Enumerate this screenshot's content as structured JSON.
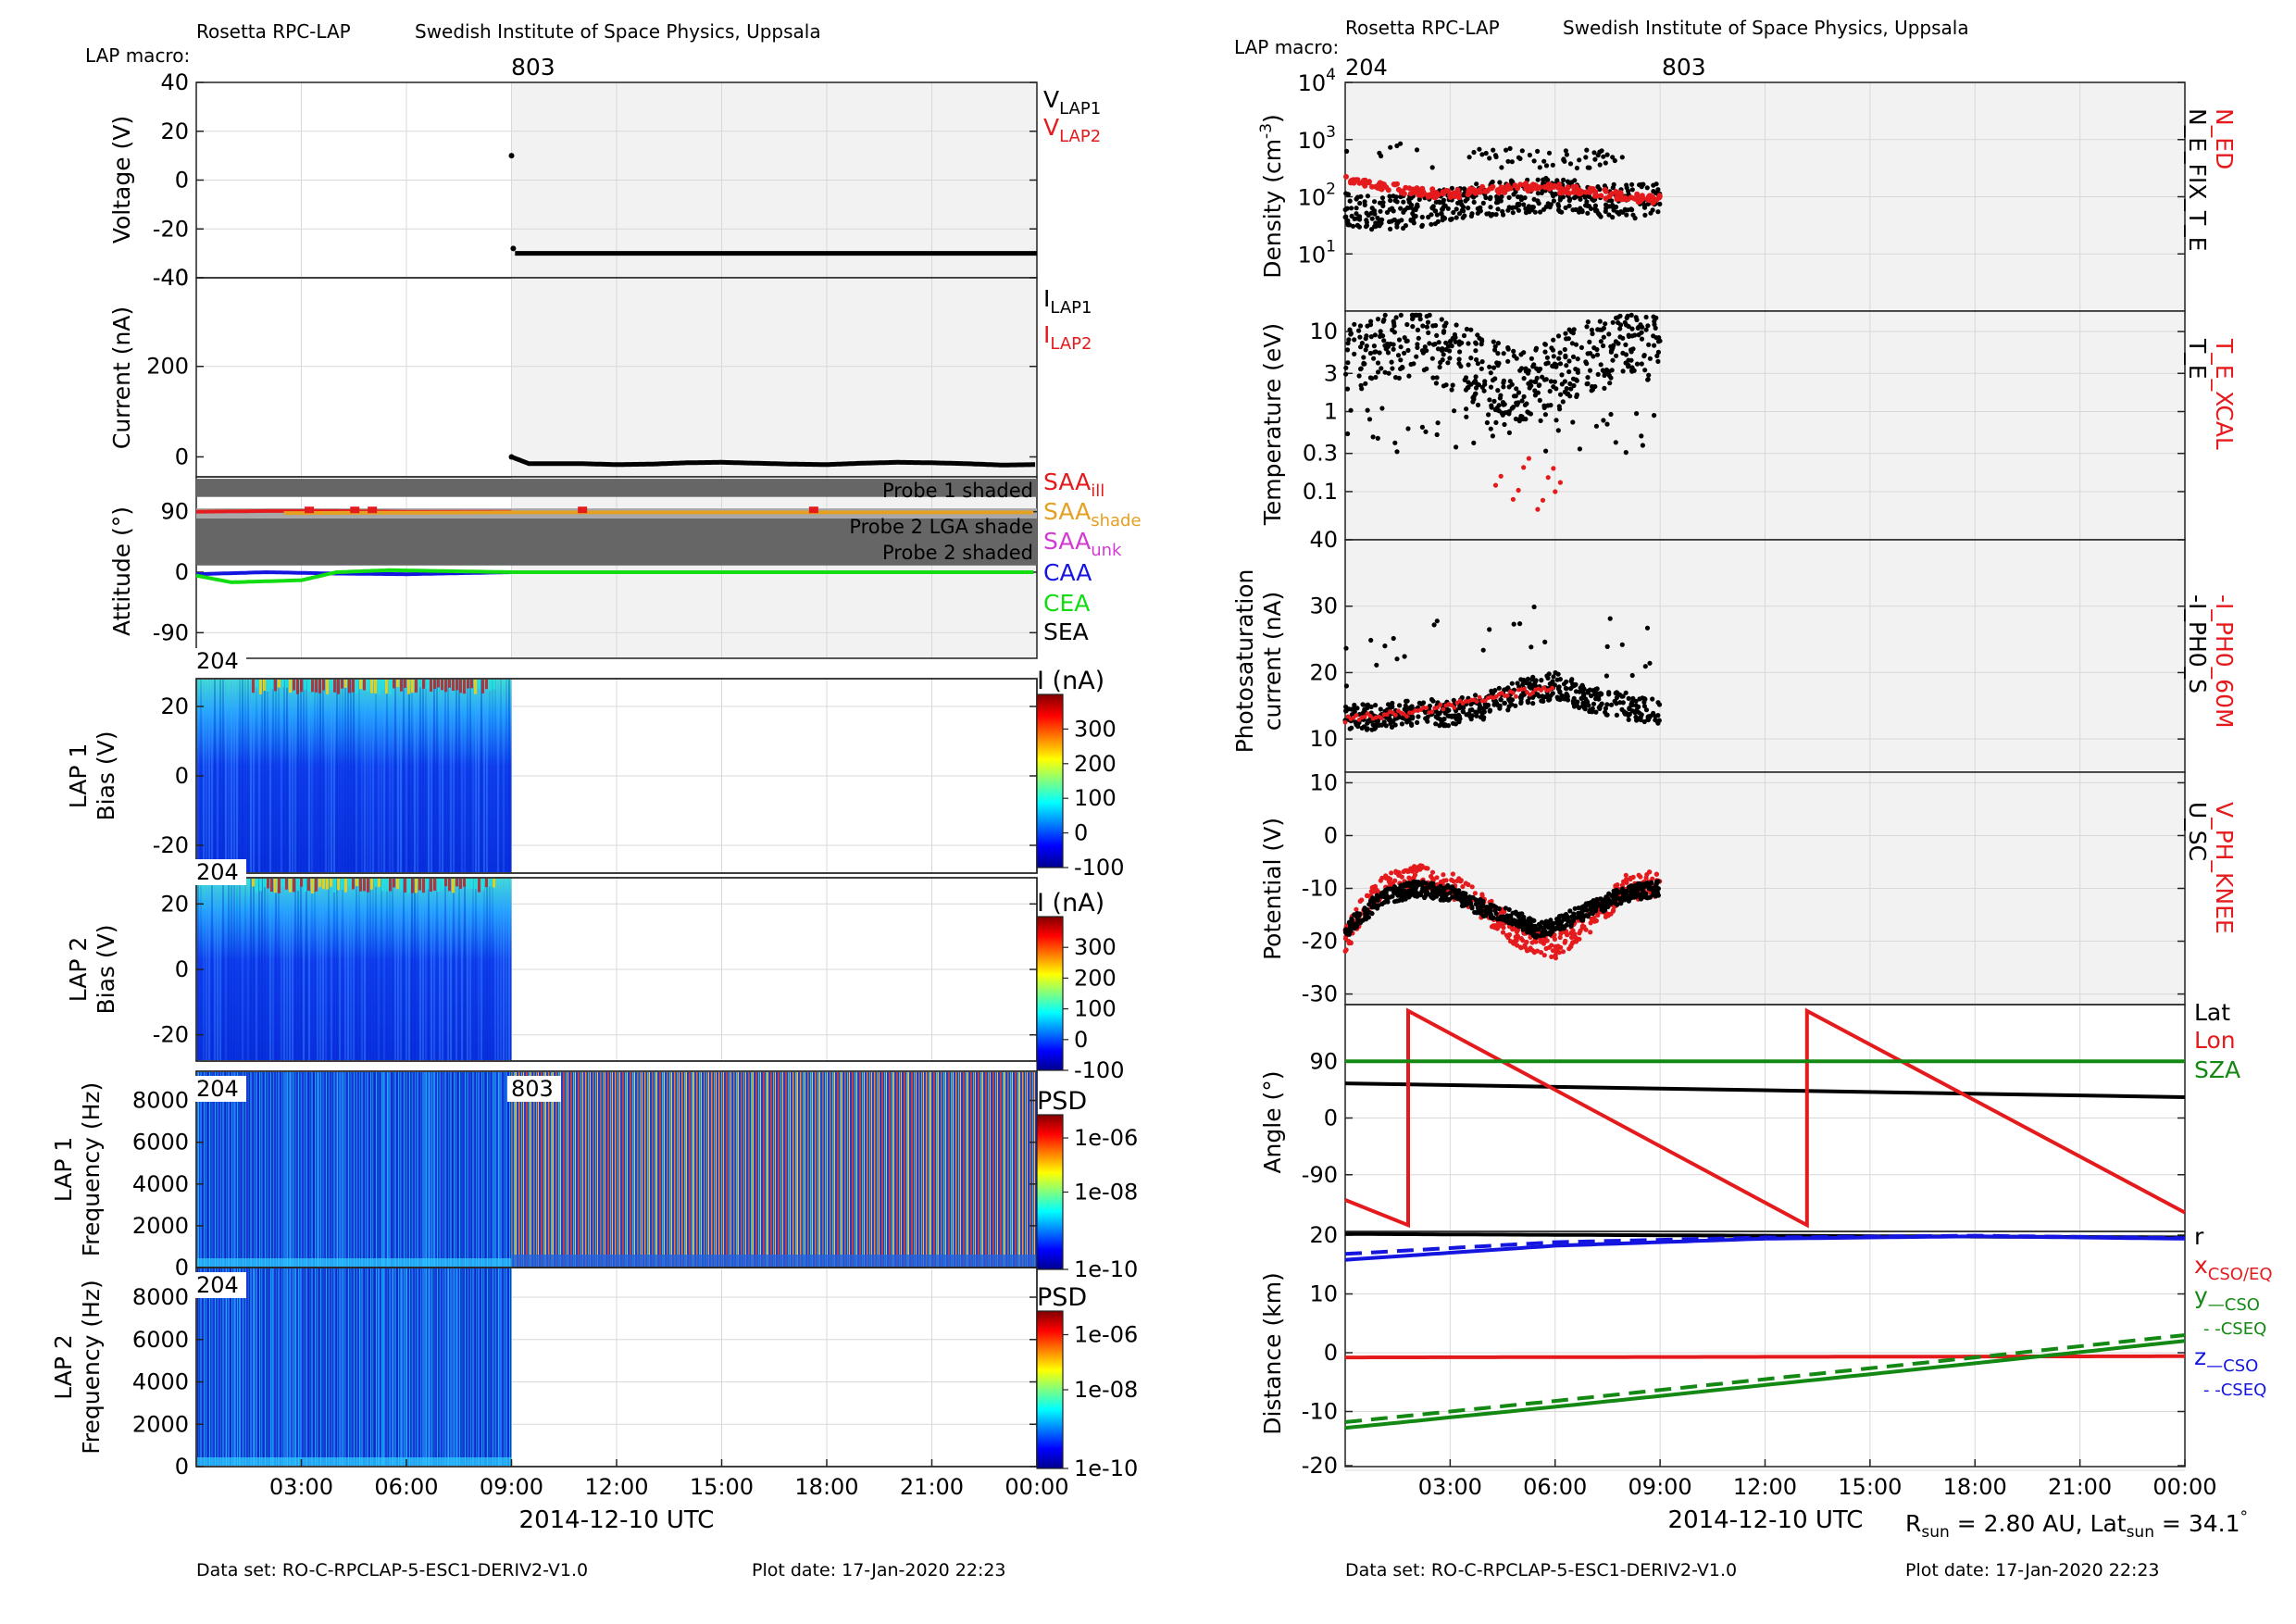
{
  "header": {
    "mission": "Rosetta RPC-LAP",
    "institute": "Swedish Institute of Space Physics, Uppsala",
    "macro_label": "LAP macro:"
  },
  "footer": {
    "dataset": "Data set: RO-C-RPCLAP-5-ESC1-DERIV2-V1.0",
    "plot_date": "Plot date: 17-Jan-2020 22:23"
  },
  "rsun": {
    "label": "R",
    "sub": "sun",
    "value": " = 2.80 AU, Lat",
    "sub2": "sun",
    "value2": " = 34.1",
    "deg": "°"
  },
  "colors": {
    "black": "#000000",
    "red": "#e41a1c",
    "orange": "#e5a021",
    "magenta": "#d23ad2",
    "blue": "#1515e0",
    "green": "#11dd11",
    "darkgreen": "#138813",
    "shade": "#666666",
    "bg_gray": "#f2f2f2"
  },
  "chart_data": [
    {
      "type": "scatter",
      "panel": "left-voltage",
      "macros": [
        "803"
      ],
      "ylabel": "Voltage (V)",
      "ylim": [
        -40,
        40
      ],
      "yticks": [
        "40",
        "20",
        "0",
        "-20",
        "-40"
      ],
      "legend": [
        {
          "name": "V",
          "sub": "LAP1",
          "color": "#000000"
        },
        {
          "name": "V",
          "sub": "LAP2",
          "color": "#e41a1c"
        }
      ],
      "series": [
        {
          "name": "V_LAP1",
          "x": [
            9.0,
            9.05,
            9.1,
            12,
            15,
            18,
            21,
            24
          ],
          "y": [
            10,
            -28,
            -30,
            -30,
            -30,
            -30,
            -30,
            -30
          ]
        }
      ]
    },
    {
      "type": "scatter",
      "panel": "left-current",
      "ylabel": "Current (nA)",
      "ylim": [
        -40,
        400
      ],
      "yticks": [
        "200",
        "0"
      ],
      "legend": [
        {
          "name": "I",
          "sub": "LAP1",
          "color": "#000000"
        },
        {
          "name": "I",
          "sub": "LAP2",
          "color": "#e41a1c"
        }
      ],
      "series": [
        {
          "name": "I_LAP1",
          "x": [
            9.0,
            9.5,
            11,
            12,
            13,
            14,
            15,
            16,
            17,
            18,
            19,
            20,
            21,
            22,
            23,
            24
          ],
          "y": [
            0,
            -15,
            -15,
            -17,
            -16,
            -13,
            -12,
            -14,
            -16,
            -17,
            -14,
            -12,
            -13,
            -15,
            -18,
            -17
          ]
        }
      ]
    },
    {
      "type": "line",
      "panel": "left-attitude",
      "ylabel": "Attitude (°)",
      "ylim": [
        -135,
        135
      ],
      "yticks": [
        "90",
        "0",
        "-90"
      ],
      "shade_labels": [
        "Probe 1 shaded",
        "Probe 2 LGA shade",
        "Probe 2 shaded"
      ],
      "legend": [
        {
          "name": "SAA",
          "sub": "ill",
          "color": "#e41a1c"
        },
        {
          "name": "SAA",
          "sub": "shade",
          "color": "#e5a021"
        },
        {
          "name": "SAA",
          "sub": "unk",
          "color": "#d23ad2"
        },
        {
          "name": "CAA",
          "sub": "",
          "color": "#1515e0"
        },
        {
          "name": "CEA",
          "sub": "",
          "color": "#11dd11"
        },
        {
          "name": "SEA",
          "sub": "",
          "color": "#000000"
        }
      ],
      "series": [
        {
          "name": "SAA_ill",
          "x": [
            0,
            2,
            4,
            6,
            8,
            9
          ],
          "y": [
            90,
            91,
            91,
            90,
            90,
            90
          ]
        },
        {
          "name": "SAA_shade",
          "x": [
            2.5,
            9,
            12,
            15,
            18,
            21,
            24
          ],
          "y": [
            88,
            89,
            89,
            89,
            89,
            89,
            89
          ]
        },
        {
          "name": "CAA",
          "x": [
            0,
            2,
            4,
            6,
            9,
            24
          ],
          "y": [
            -3,
            0,
            -2,
            -3,
            0,
            0
          ]
        },
        {
          "name": "CEA",
          "x": [
            0,
            1,
            3,
            4,
            5.5,
            9,
            24
          ],
          "y": [
            -5,
            -15,
            -12,
            0,
            3,
            0,
            0
          ]
        }
      ]
    },
    {
      "type": "heatmap",
      "panel": "left-lap1-sweep",
      "macros": [
        "204"
      ],
      "ylabel": "LAP 1 Bias (V)",
      "ylim": [
        -28,
        28
      ],
      "yticks": [
        "20",
        "0",
        "-20"
      ],
      "colorbar": {
        "label": "I (nA)",
        "ticks": [
          "300",
          "200",
          "100",
          "0",
          "-100"
        ]
      }
    },
    {
      "type": "heatmap",
      "panel": "left-lap2-sweep",
      "macros": [
        "204"
      ],
      "ylabel": "LAP 2 Bias (V)",
      "ylim": [
        -28,
        28
      ],
      "yticks": [
        "20",
        "0",
        "-20"
      ],
      "colorbar": {
        "label": "I (nA)",
        "ticks": [
          "300",
          "200",
          "100",
          "0",
          "-100"
        ]
      }
    },
    {
      "type": "heatmap",
      "panel": "left-lap1-psd",
      "macros": [
        "204",
        "803"
      ],
      "ylabel": "LAP 1 Frequency (Hz)",
      "ylim": [
        0,
        9400
      ],
      "yticks": [
        "8000",
        "6000",
        "4000",
        "2000",
        "0"
      ],
      "colorbar": {
        "label": "PSD",
        "ticks": [
          "1e-06",
          "1e-08",
          "1e-10"
        ]
      }
    },
    {
      "type": "heatmap",
      "panel": "left-lap2-psd",
      "macros": [
        "204"
      ],
      "ylabel": "LAP 2 Frequency (Hz)",
      "ylim": [
        0,
        9400
      ],
      "yticks": [
        "8000",
        "6000",
        "4000",
        "2000",
        "0"
      ],
      "colorbar": {
        "label": "PSD",
        "ticks": [
          "1e-06",
          "1e-08",
          "1e-10"
        ]
      },
      "xticks": [
        "03:00",
        "06:00",
        "09:00",
        "12:00",
        "15:00",
        "18:00",
        "21:00",
        "00:00"
      ],
      "xlabel": "2014-12-10 UTC"
    },
    {
      "type": "scatter",
      "panel": "right-density",
      "macros": [
        "204",
        "803"
      ],
      "ylabel": "Density (cm-3)",
      "yscale": "log",
      "ylim": [
        1,
        10000
      ],
      "yticks": [
        "10^4",
        "10^3",
        "10^2",
        "10^1"
      ],
      "legend": [
        {
          "name": "N_ED",
          "color": "#e41a1c"
        },
        {
          "name": "N_E_FIX_T_E",
          "color": "#000000"
        }
      ],
      "series": [
        {
          "name": "N_ED",
          "x": [
            0,
            1,
            2,
            3,
            4,
            5,
            6,
            7,
            8,
            9
          ],
          "y": [
            200,
            160,
            120,
            110,
            130,
            150,
            140,
            120,
            100,
            90
          ]
        },
        {
          "name": "N_E_FIX_T_E",
          "x": [
            0,
            1,
            2,
            3,
            4,
            5,
            6,
            7,
            8,
            9
          ],
          "y": [
            60,
            50,
            55,
            70,
            90,
            100,
            110,
            90,
            80,
            95
          ]
        }
      ]
    },
    {
      "type": "scatter",
      "panel": "right-temperature",
      "ylabel": "Temperature (eV)",
      "yscale": "log",
      "ylim": [
        0.025,
        18
      ],
      "yticks": [
        "10",
        "3",
        "1",
        "0.3",
        "0.1"
      ],
      "legend": [
        {
          "name": "T_E_XCAL",
          "color": "#e41a1c"
        },
        {
          "name": "T_E",
          "color": "#000000"
        }
      ],
      "series": [
        {
          "name": "T_E",
          "x": [
            0,
            1,
            2,
            3,
            4,
            5,
            6,
            7,
            8,
            9
          ],
          "y": [
            4,
            6,
            8,
            5,
            3,
            2,
            3,
            5,
            6,
            7
          ]
        },
        {
          "name": "T_E_XCAL",
          "x": [
            4.3,
            4.8,
            5.1,
            5.5,
            5.8,
            6.0
          ],
          "y": [
            0.12,
            0.08,
            0.2,
            0.06,
            0.15,
            0.1
          ]
        }
      ]
    },
    {
      "type": "scatter",
      "panel": "right-photosat",
      "ylabel": "Photosaturation current (nA)",
      "ylim": [
        5,
        40
      ],
      "yticks": [
        "40",
        "30",
        "20",
        "10"
      ],
      "legend": [
        {
          "name": "-I_PH0_60M",
          "color": "#e41a1c"
        },
        {
          "name": "-I_PH0_S",
          "color": "#000000"
        }
      ],
      "series": [
        {
          "name": "-I_PH0_S",
          "x": [
            0,
            1,
            2,
            3,
            4,
            5,
            6,
            7,
            8,
            9
          ],
          "y": [
            13,
            13.5,
            14,
            14,
            15,
            17,
            18,
            16,
            15,
            14
          ]
        },
        {
          "name": "-I_PH0_60M",
          "x": [
            0,
            1,
            2,
            3,
            4,
            5,
            6
          ],
          "y": [
            13,
            13.5,
            14,
            15,
            16,
            17,
            17.5
          ]
        }
      ]
    },
    {
      "type": "scatter",
      "panel": "right-potential",
      "ylabel": "Potential (V)",
      "ylim": [
        -32,
        12
      ],
      "yticks": [
        "10",
        "0",
        "-10",
        "-20",
        "-30"
      ],
      "legend": [
        {
          "name": "V_PH_KNEE",
          "color": "#e41a1c"
        },
        {
          "name": "U_SC",
          "color": "#000000"
        }
      ],
      "series": [
        {
          "name": "U_SC",
          "x": [
            0,
            0.5,
            1,
            2,
            3,
            4,
            5,
            5.5,
            6,
            7,
            8,
            9
          ],
          "y": [
            -18,
            -15,
            -12,
            -10,
            -11,
            -14,
            -16,
            -18,
            -17,
            -14,
            -11,
            -10
          ]
        },
        {
          "name": "V_PH_KNEE",
          "x": [
            0,
            0.5,
            1,
            2,
            3,
            4,
            5,
            6,
            7,
            8,
            9
          ],
          "y": [
            -20,
            -14,
            -10,
            -8,
            -9,
            -14,
            -19,
            -21,
            -16,
            -10,
            -9
          ]
        }
      ]
    },
    {
      "type": "line",
      "panel": "right-angle",
      "ylabel": "Angle (°)",
      "ylim": [
        -180,
        180
      ],
      "yticks": [
        "90",
        "0",
        "-90"
      ],
      "legend": [
        {
          "name": "Lat",
          "color": "#000000"
        },
        {
          "name": "Lon",
          "color": "#e41a1c"
        },
        {
          "name": "SZA",
          "color": "#138813"
        }
      ],
      "series": [
        {
          "name": "Lat",
          "x": [
            0,
            24
          ],
          "y": [
            55,
            33
          ]
        },
        {
          "name": "Lon",
          "x": [
            0,
            1.8,
            1.8,
            13.2,
            13.2,
            24
          ],
          "y": [
            -130,
            -170,
            170,
            -170,
            170,
            -150
          ]
        },
        {
          "name": "SZA",
          "x": [
            0,
            24
          ],
          "y": [
            90,
            90
          ]
        }
      ]
    },
    {
      "type": "line",
      "panel": "right-distance",
      "ylabel": "Distance (km)",
      "ylim": [
        -20,
        20
      ],
      "yticks": [
        "20",
        "10",
        "0",
        "-10",
        "-20"
      ],
      "legend": [
        {
          "name": "r",
          "color": "#000000"
        },
        {
          "name": "x",
          "sub": "CSO/EQ",
          "color": "#e41a1c"
        },
        {
          "name": "y",
          "sub": "—CSO",
          "sub2": "- -CSEQ",
          "color": "#138813"
        },
        {
          "name": "z",
          "sub": "—CSO",
          "sub2": "- -CSEQ",
          "color": "#1515e0"
        }
      ],
      "series": [
        {
          "name": "r",
          "x": [
            0,
            24
          ],
          "y": [
            20.2,
            19.6
          ]
        },
        {
          "name": "x",
          "x": [
            0,
            24
          ],
          "y": [
            -0.8,
            -0.6
          ]
        },
        {
          "name": "y_CSO",
          "x": [
            0,
            6,
            12,
            18,
            24
          ],
          "y": [
            -12.8,
            -9.2,
            -5.5,
            -1.8,
            2
          ]
        },
        {
          "name": "y_CSEQ",
          "x": [
            0,
            6,
            12,
            18,
            24
          ],
          "y": [
            -11.8,
            -8.2,
            -4.5,
            -0.8,
            3
          ]
        },
        {
          "name": "z_CSO",
          "x": [
            0,
            6,
            12,
            18,
            24
          ],
          "y": [
            15.8,
            18.2,
            19.4,
            19.8,
            19.4
          ]
        },
        {
          "name": "z_CSEQ",
          "x": [
            0,
            6,
            12,
            18,
            24
          ],
          "y": [
            16.8,
            18.8,
            19.6,
            19.9,
            19.5
          ]
        }
      ],
      "xticks": [
        "03:00",
        "06:00",
        "09:00",
        "12:00",
        "15:00",
        "18:00",
        "21:00",
        "00:00"
      ],
      "xlabel": "2014-12-10 UTC"
    }
  ]
}
